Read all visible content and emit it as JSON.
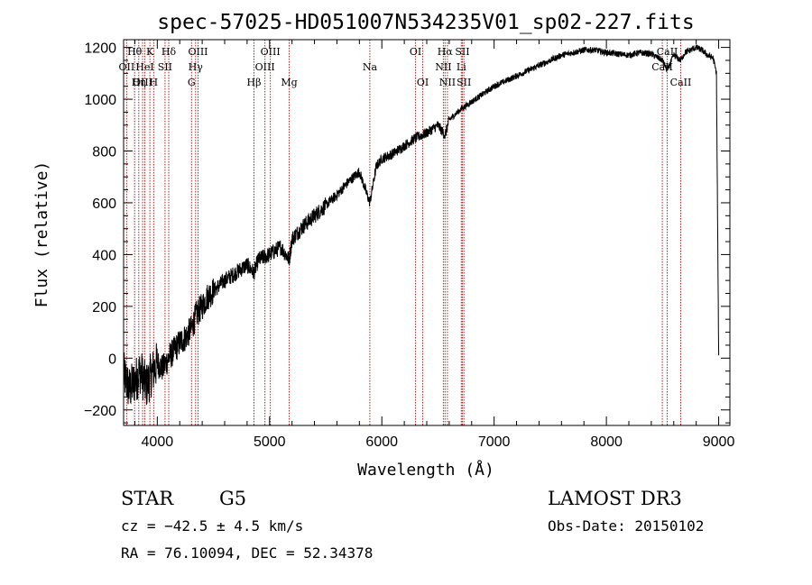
{
  "chart_data": {
    "type": "line",
    "title": "spec-57025-HD051007N534235V01_sp02-227.fits",
    "xlabel": "Wavelength (Å)",
    "ylabel": "Flux (relative)",
    "xlim": [
      3700,
      9100
    ],
    "ylim": [
      -260,
      1230
    ],
    "x_ticks": [
      4000,
      5000,
      6000,
      7000,
      8000,
      9000
    ],
    "x_tick_labels": [
      "4000",
      "5000",
      "6000",
      "7000",
      "8000",
      "9000"
    ],
    "y_ticks": [
      -200,
      0,
      200,
      400,
      600,
      800,
      1000,
      1200
    ],
    "y_tick_labels": [
      "−200",
      "0",
      "200",
      "400",
      "600",
      "800",
      "1000",
      "1200"
    ],
    "grid": false,
    "series": [
      {
        "name": "spectrum",
        "x": [
          3700,
          3750,
          3800,
          3850,
          3900,
          3950,
          4000,
          4050,
          4100,
          4150,
          4200,
          4250,
          4300,
          4350,
          4400,
          4450,
          4500,
          4600,
          4700,
          4800,
          4861,
          4900,
          5000,
          5100,
          5175,
          5200,
          5300,
          5400,
          5500,
          5600,
          5700,
          5800,
          5893,
          5950,
          6000,
          6100,
          6200,
          6300,
          6400,
          6500,
          6563,
          6600,
          6700,
          6800,
          6900,
          7000,
          7100,
          7200,
          7300,
          7400,
          7500,
          7600,
          7700,
          7800,
          7900,
          8000,
          8100,
          8200,
          8300,
          8400,
          8500,
          8542,
          8600,
          8662,
          8700,
          8800,
          8850,
          8900,
          8950,
          8980,
          9000
        ],
        "y": [
          -60,
          -120,
          -90,
          -50,
          -110,
          -60,
          -20,
          -40,
          0,
          30,
          60,
          80,
          110,
          170,
          200,
          240,
          260,
          300,
          330,
          360,
          330,
          380,
          400,
          430,
          380,
          460,
          510,
          550,
          590,
          630,
          680,
          720,
          600,
          740,
          770,
          790,
          820,
          850,
          870,
          900,
          860,
          920,
          960,
          990,
          1020,
          1050,
          1070,
          1090,
          1110,
          1130,
          1150,
          1170,
          1180,
          1190,
          1190,
          1180,
          1175,
          1170,
          1180,
          1175,
          1150,
          1110,
          1170,
          1150,
          1180,
          1200,
          1190,
          1170,
          1160,
          1100,
          0
        ]
      }
    ],
    "line_markers": [
      {
        "label": "Hθ",
        "x": 3798,
        "row": 1
      },
      {
        "label": "OII",
        "x": 3727,
        "row": 2
      },
      {
        "label": "HeI",
        "x": 3889,
        "row": 2
      },
      {
        "label": "OIII",
        "x": 3869,
        "row": 3
      },
      {
        "label": "Hη",
        "x": 3835,
        "row": 3
      },
      {
        "label": "K",
        "x": 3934,
        "row": 1
      },
      {
        "label": "SII",
        "x": 4069,
        "row": 2
      },
      {
        "label": "H",
        "x": 3968,
        "row": 3
      },
      {
        "label": "Hδ",
        "x": 4102,
        "row": 1
      },
      {
        "label": "OIII",
        "x": 4363,
        "row": 1
      },
      {
        "label": "Hγ",
        "x": 4341,
        "row": 2
      },
      {
        "label": "G",
        "x": 4305,
        "row": 3
      },
      {
        "label": "Hβ",
        "x": 4861,
        "row": 3
      },
      {
        "label": "OIII",
        "x": 5007,
        "row": 1
      },
      {
        "label": "OIII",
        "x": 4959,
        "row": 2
      },
      {
        "label": "Mg",
        "x": 5175,
        "row": 3
      },
      {
        "label": "Na",
        "x": 5893,
        "row": 2
      },
      {
        "label": "OI",
        "x": 6300,
        "row": 1
      },
      {
        "label": "OI",
        "x": 6364,
        "row": 3
      },
      {
        "label": "Hα",
        "x": 6563,
        "row": 1
      },
      {
        "label": "NII",
        "x": 6548,
        "row": 2
      },
      {
        "label": "NII",
        "x": 6584,
        "row": 3
      },
      {
        "label": "SII",
        "x": 6717,
        "row": 1
      },
      {
        "label": "SII",
        "x": 6731,
        "row": 3
      },
      {
        "label": "Li",
        "x": 6708,
        "row": 2
      },
      {
        "label": "CaII",
        "x": 8498,
        "row": 2
      },
      {
        "label": "CaII",
        "x": 8542,
        "row": 1
      },
      {
        "label": "CaII",
        "x": 8662,
        "row": 3
      }
    ]
  },
  "annotations": {
    "object_class": "STAR",
    "subclass": "G5",
    "cz": "cz = −42.5 ± 4.5 km/s",
    "radec": "RA =  76.10094, DEC =  52.34378",
    "survey": "LAMOST DR3",
    "obs_date": "Obs-Date: 20150102"
  },
  "colors": {
    "spectrum": "#000000",
    "marker_lines": "#b22222",
    "axes": "#000000"
  }
}
